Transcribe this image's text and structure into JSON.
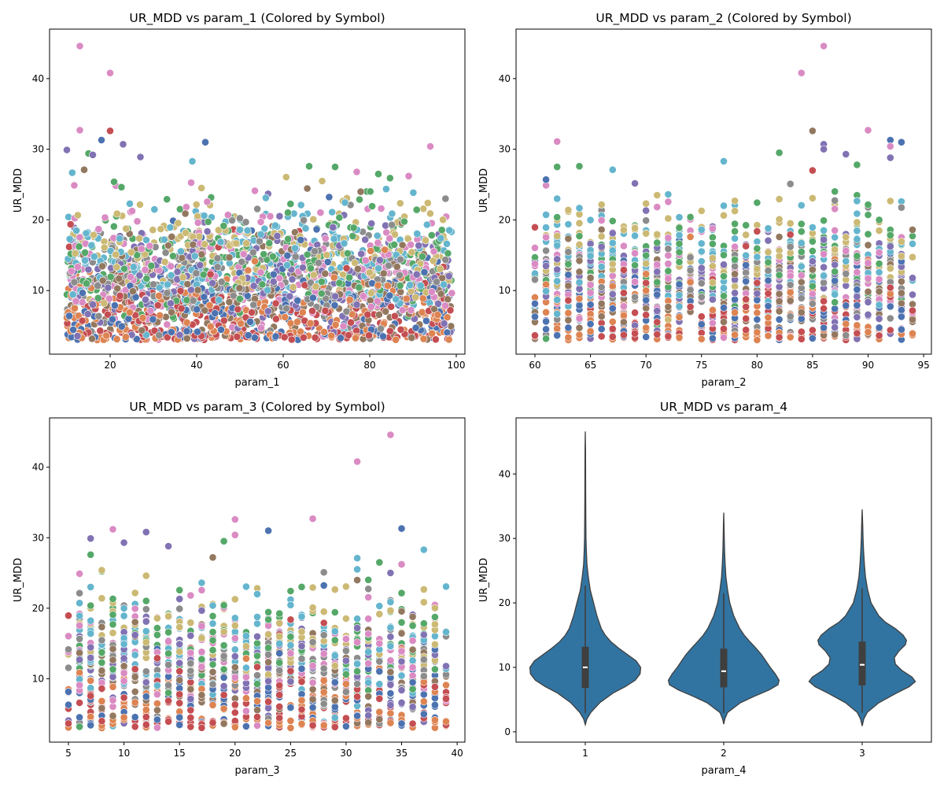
{
  "palette": [
    "#4c72b0",
    "#dd8452",
    "#55a868",
    "#c44e52",
    "#8172b3",
    "#937860",
    "#da8bc3",
    "#8c8c8c",
    "#ccb974",
    "#64b5cd"
  ],
  "violin_color": "#3274a1",
  "chart_data": [
    {
      "type": "scatter",
      "title": "UR_MDD vs param_1 (Colored by Symbol)",
      "xlabel": "param_1",
      "ylabel": "UR_MDD",
      "xlim": [
        6,
        102
      ],
      "ylim": [
        1,
        47
      ],
      "xticks": [
        20,
        40,
        60,
        80,
        100
      ],
      "yticks": [
        10,
        20,
        30,
        40
      ],
      "x_domain": [
        10,
        99
      ],
      "x_integer": false,
      "n_points": 2600,
      "highlights": [
        {
          "x": 13,
          "y": 44.6,
          "c": 6
        },
        {
          "x": 20,
          "y": 40.8,
          "c": 6
        },
        {
          "x": 13,
          "y": 32.7,
          "c": 6
        },
        {
          "x": 20,
          "y": 32.6,
          "c": 3
        },
        {
          "x": 18,
          "y": 31.3,
          "c": 0
        },
        {
          "x": 42,
          "y": 31.0,
          "c": 0
        },
        {
          "x": 23,
          "y": 30.7,
          "c": 4
        },
        {
          "x": 94,
          "y": 30.4,
          "c": 6
        },
        {
          "x": 10,
          "y": 29.9,
          "c": 4
        },
        {
          "x": 15,
          "y": 29.4,
          "c": 2
        },
        {
          "x": 16,
          "y": 29.2,
          "c": 4
        },
        {
          "x": 27,
          "y": 28.9,
          "c": 4
        },
        {
          "x": 39,
          "y": 28.3,
          "c": 9
        },
        {
          "x": 14,
          "y": 27.1,
          "c": 5
        },
        {
          "x": 66,
          "y": 27.6,
          "c": 2
        },
        {
          "x": 77,
          "y": 26.8,
          "c": 6
        },
        {
          "x": 82,
          "y": 26.5,
          "c": 2
        },
        {
          "x": 89,
          "y": 26.2,
          "c": 6
        },
        {
          "x": 69,
          "y": 25.5,
          "c": 8
        },
        {
          "x": 72,
          "y": 27.5,
          "c": 2
        }
      ]
    },
    {
      "type": "scatter",
      "title": "UR_MDD vs param_2 (Colored by Symbol)",
      "xlabel": "param_2",
      "ylabel": "UR_MDD",
      "xlim": [
        58.3,
        95.7
      ],
      "ylim": [
        1,
        47
      ],
      "xticks": [
        60,
        65,
        70,
        75,
        80,
        85,
        90,
        95
      ],
      "yticks": [
        10,
        20,
        30,
        40
      ],
      "x_domain": [
        60,
        94
      ],
      "x_integer": true,
      "n_points": 1500,
      "highlights": [
        {
          "x": 86,
          "y": 44.6,
          "c": 6
        },
        {
          "x": 84,
          "y": 40.8,
          "c": 6
        },
        {
          "x": 90,
          "y": 32.7,
          "c": 6
        },
        {
          "x": 85,
          "y": 32.6,
          "c": 5
        },
        {
          "x": 92,
          "y": 31.3,
          "c": 0
        },
        {
          "x": 93,
          "y": 31.0,
          "c": 0
        },
        {
          "x": 62,
          "y": 31.1,
          "c": 6
        },
        {
          "x": 86,
          "y": 30.7,
          "c": 4
        },
        {
          "x": 86,
          "y": 30.0,
          "c": 4
        },
        {
          "x": 92,
          "y": 30.4,
          "c": 6
        },
        {
          "x": 88,
          "y": 29.3,
          "c": 4
        },
        {
          "x": 82,
          "y": 29.5,
          "c": 2
        },
        {
          "x": 92,
          "y": 28.8,
          "c": 4
        },
        {
          "x": 77,
          "y": 28.3,
          "c": 9
        },
        {
          "x": 89,
          "y": 27.8,
          "c": 2
        },
        {
          "x": 62,
          "y": 27.5,
          "c": 2
        },
        {
          "x": 64,
          "y": 27.6,
          "c": 2
        },
        {
          "x": 85,
          "y": 27.0,
          "c": 3
        },
        {
          "x": 67,
          "y": 27.1,
          "c": 9
        },
        {
          "x": 61,
          "y": 25.7,
          "c": 0
        }
      ]
    },
    {
      "type": "scatter",
      "title": "UR_MDD vs param_3 (Colored by Symbol)",
      "xlabel": "param_3",
      "ylabel": "UR_MDD",
      "xlim": [
        3.3,
        40.7
      ],
      "ylim": [
        1,
        47
      ],
      "xticks": [
        5,
        10,
        15,
        20,
        25,
        30,
        35,
        40
      ],
      "yticks": [
        10,
        20,
        30,
        40
      ],
      "x_domain": [
        5,
        39
      ],
      "x_integer": true,
      "n_points": 1500,
      "highlights": [
        {
          "x": 34,
          "y": 44.6,
          "c": 6
        },
        {
          "x": 31,
          "y": 40.8,
          "c": 6
        },
        {
          "x": 27,
          "y": 32.7,
          "c": 6
        },
        {
          "x": 20,
          "y": 32.6,
          "c": 6
        },
        {
          "x": 35,
          "y": 31.3,
          "c": 0
        },
        {
          "x": 23,
          "y": 31.0,
          "c": 0
        },
        {
          "x": 9,
          "y": 31.2,
          "c": 6
        },
        {
          "x": 12,
          "y": 30.8,
          "c": 4
        },
        {
          "x": 20,
          "y": 30.4,
          "c": 6
        },
        {
          "x": 7,
          "y": 29.9,
          "c": 4
        },
        {
          "x": 10,
          "y": 29.3,
          "c": 4
        },
        {
          "x": 19,
          "y": 29.5,
          "c": 2
        },
        {
          "x": 14,
          "y": 28.8,
          "c": 4
        },
        {
          "x": 37,
          "y": 28.3,
          "c": 9
        },
        {
          "x": 7,
          "y": 27.6,
          "c": 2
        },
        {
          "x": 18,
          "y": 27.2,
          "c": 5
        },
        {
          "x": 31,
          "y": 27.1,
          "c": 9
        },
        {
          "x": 33,
          "y": 26.5,
          "c": 2
        },
        {
          "x": 8,
          "y": 25.4,
          "c": 8
        },
        {
          "x": 34,
          "y": 25.0,
          "c": 4
        }
      ]
    },
    {
      "type": "violin",
      "title": "UR_MDD vs param_4",
      "xlabel": "param_4",
      "ylabel": "UR_MDD",
      "categories": [
        "1",
        "2",
        "3"
      ],
      "ylim": [
        -1.6,
        48.7
      ],
      "yticks": [
        0,
        10,
        20,
        30,
        40
      ],
      "violins": [
        {
          "category": "1",
          "min": 1.1,
          "max": 46.6,
          "q1": 6.8,
          "median": 10.0,
          "q3": 13.2,
          "whisker_low": 2.9,
          "whisker_high": 22.7,
          "density": [
            [
              1.1,
              0.0
            ],
            [
              2.0,
              0.03
            ],
            [
              3.0,
              0.1
            ],
            [
              4.5,
              0.26
            ],
            [
              6.0,
              0.5
            ],
            [
              7.0,
              0.72
            ],
            [
              8.0,
              0.9
            ],
            [
              9.0,
              0.99
            ],
            [
              10.0,
              1.0
            ],
            [
              11.0,
              0.92
            ],
            [
              12.0,
              0.76
            ],
            [
              13.0,
              0.6
            ],
            [
              14.0,
              0.46
            ],
            [
              15.0,
              0.36
            ],
            [
              16.0,
              0.29
            ],
            [
              18.0,
              0.21
            ],
            [
              20.0,
              0.15
            ],
            [
              22.0,
              0.09
            ],
            [
              24.0,
              0.055
            ],
            [
              26.0,
              0.03
            ],
            [
              28.0,
              0.02
            ],
            [
              30.0,
              0.013
            ],
            [
              33.0,
              0.01
            ],
            [
              37.0,
              0.007
            ],
            [
              41.0,
              0.005
            ],
            [
              44.0,
              0.004
            ],
            [
              46.6,
              0.0
            ]
          ]
        },
        {
          "category": "2",
          "min": 1.2,
          "max": 34.0,
          "q1": 6.9,
          "median": 9.4,
          "q3": 12.9,
          "whisker_low": 2.9,
          "whisker_high": 21.5,
          "density": [
            [
              1.2,
              0.0
            ],
            [
              2.0,
              0.02
            ],
            [
              3.0,
              0.07
            ],
            [
              4.5,
              0.3
            ],
            [
              5.5,
              0.55
            ],
            [
              6.5,
              0.82
            ],
            [
              7.3,
              0.98
            ],
            [
              8.0,
              1.0
            ],
            [
              9.0,
              0.93
            ],
            [
              10.0,
              0.84
            ],
            [
              11.0,
              0.76
            ],
            [
              12.0,
              0.68
            ],
            [
              13.0,
              0.58
            ],
            [
              14.0,
              0.47
            ],
            [
              15.0,
              0.37
            ],
            [
              16.0,
              0.29
            ],
            [
              18.0,
              0.18
            ],
            [
              20.0,
              0.11
            ],
            [
              22.0,
              0.07
            ],
            [
              24.0,
              0.04
            ],
            [
              26.0,
              0.025
            ],
            [
              28.0,
              0.015
            ],
            [
              30.0,
              0.01
            ],
            [
              32.0,
              0.006
            ],
            [
              34.0,
              0.0
            ]
          ]
        },
        {
          "category": "3",
          "min": 0.9,
          "max": 34.5,
          "q1": 7.2,
          "median": 10.4,
          "q3": 14.0,
          "whisker_low": 3.0,
          "whisker_high": 22.3,
          "density": [
            [
              0.9,
              0.0
            ],
            [
              2.0,
              0.03
            ],
            [
              3.0,
              0.09
            ],
            [
              4.5,
              0.3
            ],
            [
              6.0,
              0.62
            ],
            [
              7.0,
              0.85
            ],
            [
              7.8,
              0.96
            ],
            [
              8.5,
              0.9
            ],
            [
              9.5,
              0.72
            ],
            [
              10.5,
              0.6
            ],
            [
              11.5,
              0.58
            ],
            [
              12.5,
              0.66
            ],
            [
              13.5,
              0.78
            ],
            [
              14.2,
              0.8
            ],
            [
              15.0,
              0.74
            ],
            [
              16.0,
              0.6
            ],
            [
              17.0,
              0.42
            ],
            [
              18.0,
              0.3
            ],
            [
              20.0,
              0.16
            ],
            [
              22.0,
              0.1
            ],
            [
              24.0,
              0.06
            ],
            [
              26.0,
              0.04
            ],
            [
              28.0,
              0.025
            ],
            [
              30.0,
              0.015
            ],
            [
              32.0,
              0.01
            ],
            [
              34.5,
              0.0
            ]
          ]
        }
      ]
    }
  ]
}
